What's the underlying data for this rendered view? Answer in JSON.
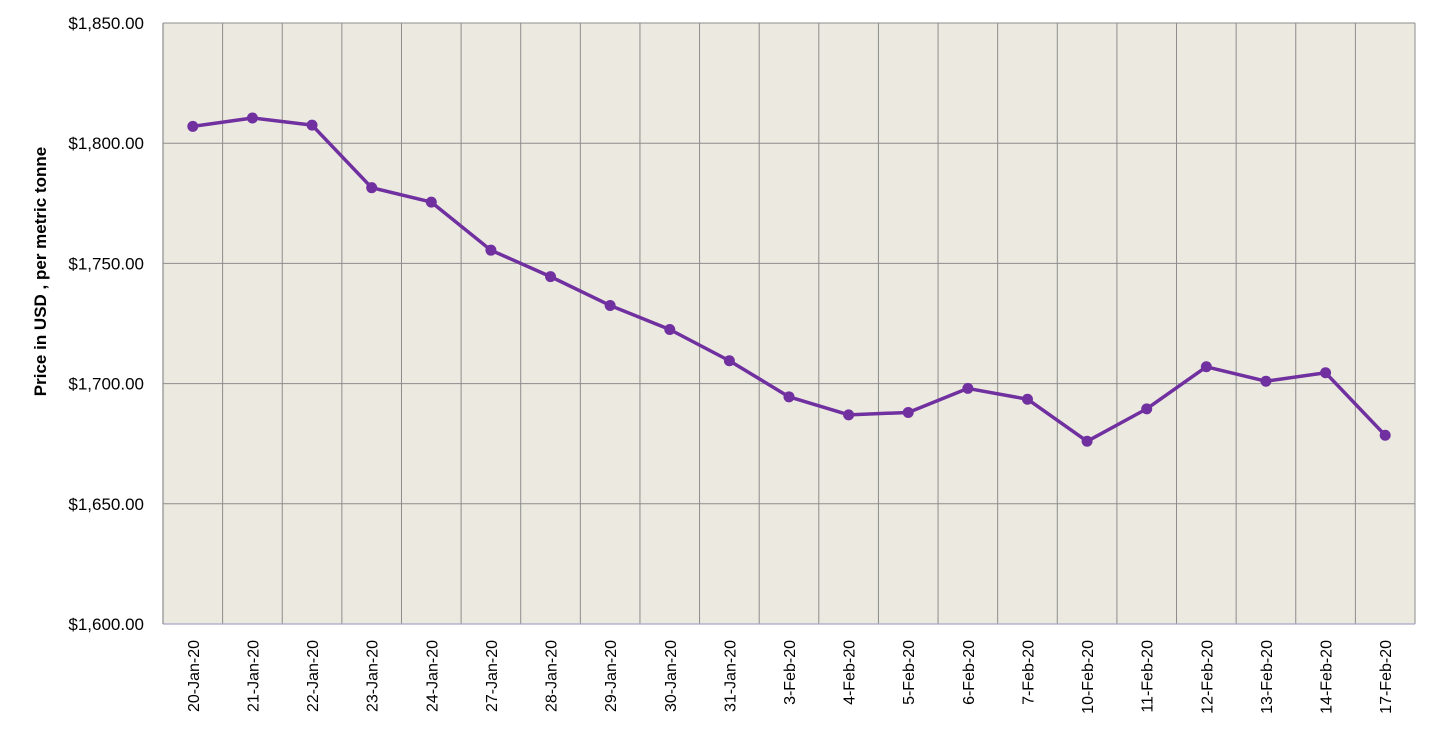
{
  "chart_data": {
    "type": "line",
    "title": "",
    "xlabel": "",
    "ylabel": "Price in USD , per metric tonne",
    "ylim": [
      1600,
      1850
    ],
    "yticks": [
      "$1,600.00",
      "$1,650.00",
      "$1,700.00",
      "$1,750.00",
      "$1,800.00",
      "$1,850.00"
    ],
    "ytick_values": [
      1600,
      1650,
      1700,
      1750,
      1800,
      1850
    ],
    "grid": true,
    "legend": "none",
    "colors": {
      "plot_bg": "#ECEAE0",
      "grid": "#8C8C8C",
      "line": "#7030A0"
    },
    "categories": [
      "20-Jan-20",
      "21-Jan-20",
      "22-Jan-20",
      "23-Jan-20",
      "24-Jan-20",
      "27-Jan-20",
      "28-Jan-20",
      "29-Jan-20",
      "30-Jan-20",
      "31-Jan-20",
      "3-Feb-20",
      "4-Feb-20",
      "5-Feb-20",
      "6-Feb-20",
      "7-Feb-20",
      "10-Feb-20",
      "11-Feb-20",
      "12-Feb-20",
      "13-Feb-20",
      "14-Feb-20",
      "17-Feb-20"
    ],
    "series": [
      {
        "values": [
          1807,
          1810.5,
          1807.5,
          1781.5,
          1775.5,
          1755.5,
          1744.5,
          1732.5,
          1722.5,
          1709.5,
          1694.5,
          1687,
          1688,
          1698,
          1693.5,
          1676,
          1689.5,
          1707,
          1701,
          1704.5,
          1678.5
        ]
      }
    ]
  }
}
